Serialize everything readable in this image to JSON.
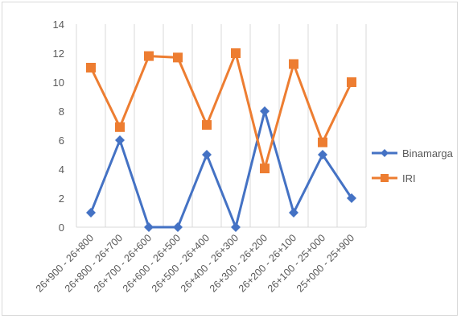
{
  "chart_data": {
    "type": "line",
    "title": "",
    "xlabel": "",
    "ylabel": "",
    "categories": [
      "26+900 - 26+800",
      "26+800 - 26+700",
      "26+700 - 26+600",
      "26+600 - 26+500",
      "26+500 - 26+400",
      "26+400 - 26+300",
      "26+300 - 26+200",
      "26+200 - 26+100",
      "26+100 - 25+000",
      "25+000 - 25+900"
    ],
    "series": [
      {
        "name": "Binamarga",
        "color": "#4472c4",
        "marker": "diamond",
        "values": [
          1,
          6,
          0,
          0,
          5,
          0,
          8,
          1,
          5,
          2
        ]
      },
      {
        "name": "IRI",
        "color": "#ed7d31",
        "marker": "square",
        "values": [
          11,
          6.9,
          11.8,
          11.7,
          7.05,
          12,
          4.05,
          11.25,
          5.85,
          10
        ]
      }
    ],
    "ylim": [
      0,
      14
    ],
    "yticks": [
      0,
      2,
      4,
      6,
      8,
      10,
      12,
      14
    ],
    "grid": "vertical",
    "legend": "right"
  }
}
